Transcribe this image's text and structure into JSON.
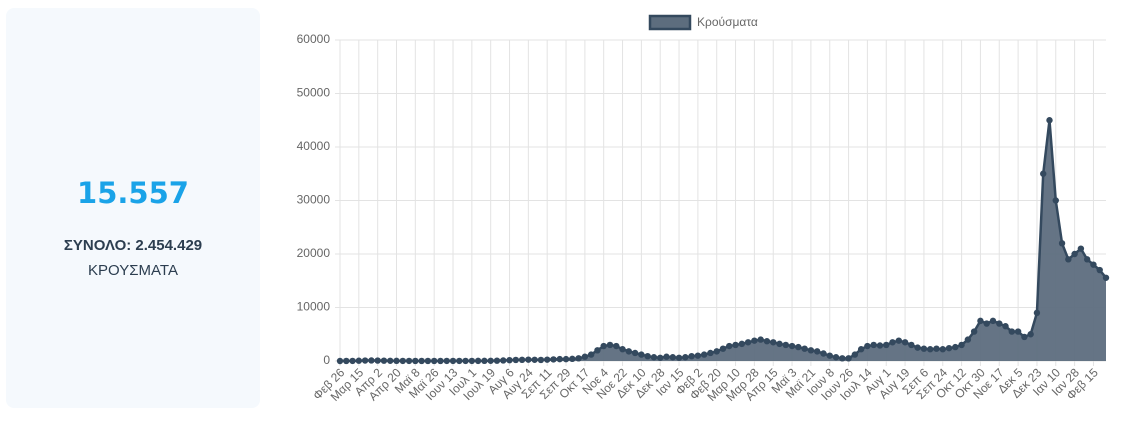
{
  "card": {
    "value": "15.557",
    "total": "ΣΥΝΟΛΟ: 2.454.429",
    "label": "ΚΡΟΥΣΜΑΤΑ"
  },
  "chart_data": {
    "type": "line",
    "categories": [
      "Φεβ 26",
      null,
      null,
      "Μαρ 15",
      null,
      null,
      "Απρ 2",
      null,
      null,
      "Απρ 20",
      null,
      null,
      "Μαϊ 8",
      null,
      null,
      "Μαϊ 26",
      null,
      null,
      "Ιουν 13",
      null,
      null,
      "Ιουλ 1",
      null,
      null,
      "Ιουλ 19",
      null,
      null,
      "Αυγ 6",
      null,
      null,
      "Αυγ 24",
      null,
      null,
      "Σεπ 11",
      null,
      null,
      "Σεπ 29",
      null,
      null,
      "Οκτ 17",
      null,
      null,
      "Νοε 4",
      null,
      null,
      "Νοε 22",
      null,
      null,
      "Δεκ 10",
      null,
      null,
      "Δεκ 28",
      null,
      null,
      "Ιαν 15",
      null,
      null,
      "Φεβ 2",
      null,
      null,
      "Φεβ 20",
      null,
      null,
      "Μαρ 10",
      null,
      null,
      "Μαρ 28",
      null,
      null,
      "Απρ 15",
      null,
      null,
      "Μαϊ 3",
      null,
      null,
      "Μαϊ 21",
      null,
      null,
      "Ιουν 8",
      null,
      null,
      "Ιουν 26",
      null,
      null,
      "Ιουλ 14",
      null,
      null,
      "Αυγ 1",
      null,
      null,
      "Αυγ 19",
      null,
      null,
      "Σεπ 6",
      null,
      null,
      "Σεπ 24",
      null,
      null,
      "Οκτ 12",
      null,
      null,
      "Οκτ 30",
      null,
      null,
      "Νοε 17",
      null,
      null,
      "Δεκ 5",
      null,
      null,
      "Δεκ 23",
      null,
      null,
      "Ιαν 10",
      null,
      null,
      "Ιαν 28",
      null,
      null,
      "Φεβ 15",
      null,
      null
    ],
    "series": [
      {
        "name": "Κρούσματα",
        "color": "#34495e",
        "fill": "#5d6d7e",
        "values": [
          0,
          10,
          20,
          50,
          90,
          100,
          80,
          60,
          40,
          30,
          20,
          15,
          10,
          10,
          10,
          10,
          10,
          15,
          20,
          15,
          15,
          20,
          25,
          30,
          40,
          60,
          100,
          150,
          200,
          220,
          250,
          230,
          200,
          250,
          300,
          350,
          350,
          400,
          500,
          800,
          1200,
          2000,
          2800,
          3000,
          2800,
          2200,
          1800,
          1500,
          1200,
          900,
          700,
          600,
          800,
          700,
          600,
          700,
          900,
          1000,
          1200,
          1500,
          1800,
          2300,
          2800,
          3000,
          3200,
          3500,
          3800,
          4000,
          3700,
          3500,
          3200,
          3000,
          2800,
          2600,
          2300,
          2000,
          1800,
          1400,
          1000,
          700,
          500,
          500,
          1200,
          2200,
          2800,
          3000,
          2900,
          3000,
          3500,
          3800,
          3500,
          3000,
          2500,
          2300,
          2200,
          2300,
          2200,
          2400,
          2600,
          3000,
          4000,
          5500,
          7500,
          7000,
          7500,
          7000,
          6500,
          5500,
          5500,
          4500,
          5000,
          9000,
          35000,
          45000,
          30000,
          22000,
          19000,
          20000,
          21000,
          19000,
          18000,
          17000,
          15557
        ]
      }
    ],
    "ylim": [
      0,
      60000
    ],
    "yticks": [
      0,
      10000,
      20000,
      30000,
      40000,
      50000,
      60000
    ],
    "grid": true,
    "legend": "top"
  }
}
